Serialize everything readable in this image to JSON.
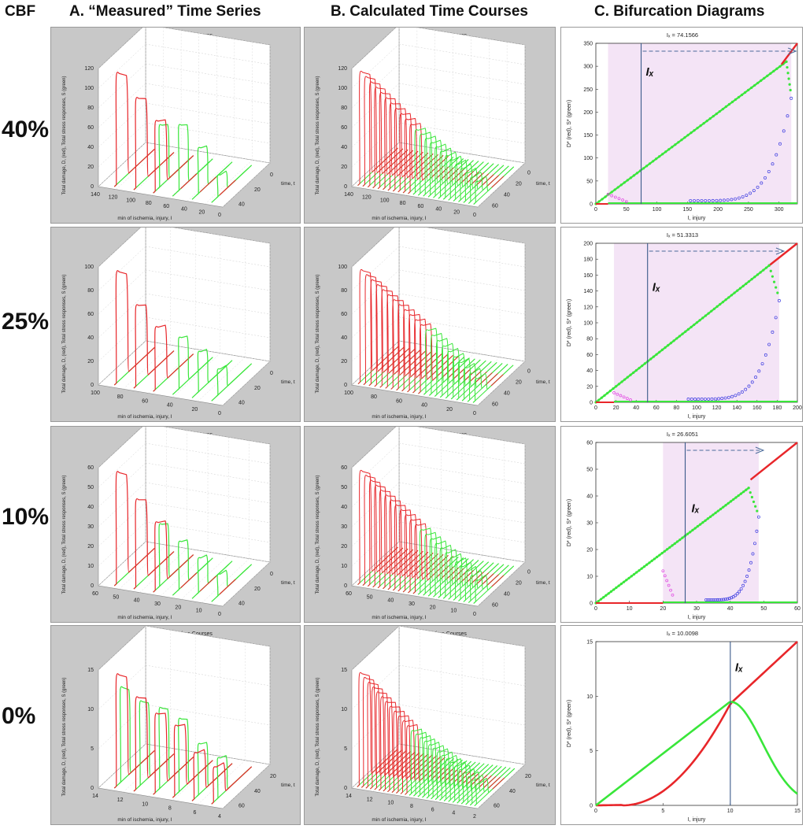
{
  "headers": {
    "cbf": "CBF",
    "col_a": "A. “Measured” Time Series",
    "col_b": "B. Calculated Time Courses",
    "col_c": "C. Bifurcation Diagrams"
  },
  "rows": [
    {
      "cbf": "40%"
    },
    {
      "cbf": "25%"
    },
    {
      "cbf": "10%"
    },
    {
      "cbf": "0%"
    }
  ],
  "colors": {
    "damage": "#e8262a",
    "stress": "#39e63a",
    "unstable": "#3a3ae0",
    "magenta": "#e040e0",
    "shade": "#f4e4f6",
    "panel_bg": "#c9c9c9",
    "arrow": "#4a6a9a"
  },
  "chart_data": [
    {
      "type": "line",
      "panel": "A-40",
      "title": "Absolute Value Time Courses",
      "zlabel": "Total damage, D, (red), Total stress responses, S (green)",
      "xlabel": "min of ischemia, injury, I",
      "ylabel": "time, t",
      "z_ticks": [
        "0",
        "20",
        "40",
        "60",
        "80",
        "100",
        "120"
      ],
      "x_ticks": [
        "140",
        "120",
        "100",
        "80",
        "60",
        "40",
        "20",
        "0"
      ],
      "y_ticks": [
        "0",
        "20",
        "40"
      ],
      "peaks_red": [
        1.0,
        0.8,
        0.62,
        0.0,
        0.0,
        0.0
      ],
      "peaks_green": [
        0.0,
        0.0,
        0.55,
        0.58,
        0.4,
        0.18
      ]
    },
    {
      "type": "line",
      "panel": "B-40",
      "title": "Absolute Value Time Courses",
      "zlabel": "Total damage, D, (red), Total stress responses, S (green)",
      "xlabel": "min of ischemia, injury, I",
      "ylabel": "time, t",
      "z_ticks": [
        "0",
        "20",
        "40",
        "60",
        "80",
        "100",
        "120"
      ],
      "x_ticks": [
        "140",
        "120",
        "100",
        "80",
        "60",
        "40",
        "20",
        "0"
      ],
      "y_ticks": [
        "0",
        "20",
        "40",
        "60"
      ],
      "n_red": 11,
      "n_green": 13
    },
    {
      "type": "scatter",
      "panel": "C-40",
      "title": "Iₓ = 74.1566",
      "ix_label": "Iₓ",
      "xlabel": "I, injury",
      "ylabel": "D* (red), S* (green)",
      "xlim": [
        0,
        330
      ],
      "ylim": [
        0,
        350
      ],
      "x_ticks": [
        0,
        50,
        100,
        150,
        200,
        250,
        300
      ],
      "y_ticks": [
        0,
        50,
        100,
        150,
        200,
        250,
        300,
        350
      ],
      "ix": 74.1566,
      "shade": [
        20,
        320
      ]
    },
    {
      "type": "line",
      "panel": "A-25",
      "title": "Absolute Value Time Courses",
      "zlabel": "Total damage, D, (red), Total stress responses, S (green)",
      "xlabel": "min of ischemia, injury, I",
      "ylabel": "time, t",
      "z_ticks": [
        "0",
        "20",
        "40",
        "60",
        "80",
        "100"
      ],
      "x_ticks": [
        "100",
        "80",
        "60",
        "40",
        "20",
        "0"
      ],
      "y_ticks": [
        "0",
        "20",
        "40"
      ],
      "peaks_red": [
        1.0,
        0.72,
        0.55,
        0.0,
        0.0,
        0.0
      ],
      "peaks_green": [
        0.0,
        0.0,
        0.0,
        0.45,
        0.35,
        0.22
      ]
    },
    {
      "type": "line",
      "panel": "B-25",
      "title": "Absolute Value Time Courses",
      "zlabel": "Total damage, D, (red), Total stress responses, S (green)",
      "xlabel": "min of ischemia, injury, I",
      "ylabel": "time, t",
      "z_ticks": [
        "0",
        "20",
        "40",
        "60",
        "80",
        "100"
      ],
      "x_ticks": [
        "100",
        "80",
        "60",
        "40",
        "20",
        "0"
      ],
      "y_ticks": [
        "0",
        "20",
        "40",
        "60"
      ],
      "n_red": 12,
      "n_green": 10
    },
    {
      "type": "scatter",
      "panel": "C-25",
      "title": "Iₓ = 51.3313",
      "ix_label": "Iₓ",
      "xlabel": "I, injury",
      "ylabel": "D* (red), S* (green)",
      "xlim": [
        0,
        200
      ],
      "ylim": [
        0,
        200
      ],
      "x_ticks": [
        0,
        20,
        40,
        60,
        80,
        100,
        120,
        140,
        160,
        180,
        200
      ],
      "y_ticks": [
        0,
        20,
        40,
        60,
        80,
        100,
        120,
        140,
        160,
        180,
        200
      ],
      "ix": 51.3313,
      "shade": [
        18,
        182
      ]
    },
    {
      "type": "line",
      "panel": "A-10",
      "title": "Absolute Value Time Courses",
      "zlabel": "Total damage, D, (red), Total stress responses, S (green)",
      "xlabel": "min of ischemia, injury, I",
      "ylabel": "time, t",
      "z_ticks": [
        "0",
        "10",
        "20",
        "30",
        "40",
        "50",
        "60"
      ],
      "x_ticks": [
        "60",
        "50",
        "40",
        "30",
        "20",
        "10",
        "0"
      ],
      "y_ticks": [
        "0",
        "20",
        "40"
      ],
      "peaks_red": [
        1.0,
        0.78,
        0.6,
        0.0,
        0.0,
        0.0
      ],
      "peaks_green": [
        0.0,
        0.0,
        0.55,
        0.42,
        0.3,
        0.18
      ]
    },
    {
      "type": "line",
      "panel": "B-10",
      "title": "Absolute Value Time Courses",
      "zlabel": "Total damage, D, (red), Total stress responses, S (green)",
      "xlabel": "min of ischemia, injury, I",
      "ylabel": "time, t",
      "z_ticks": [
        "0",
        "10",
        "20",
        "30",
        "40",
        "50",
        "60"
      ],
      "x_ticks": [
        "60",
        "50",
        "40",
        "30",
        "20",
        "10",
        "0"
      ],
      "y_ticks": [
        "0",
        "20",
        "40",
        "60"
      ],
      "n_red": 12,
      "n_green": 12
    },
    {
      "type": "scatter",
      "panel": "C-10",
      "title": "Iₓ = 26.6051",
      "ix_label": "Iₓ",
      "xlabel": "I, injury",
      "ylabel": "D* (red), S* (green)",
      "xlim": [
        0,
        60
      ],
      "ylim": [
        0,
        60
      ],
      "x_ticks": [
        0,
        10,
        20,
        30,
        40,
        50,
        60
      ],
      "y_ticks": [
        0,
        10,
        20,
        30,
        40,
        50,
        60
      ],
      "ix": 26.6051,
      "shade": [
        20,
        48.5
      ]
    },
    {
      "type": "line",
      "panel": "A-0",
      "title": "Absolute Value Time Courses",
      "zlabel": "Total damage, D, (red), Total stress responses, S (green)",
      "xlabel": "min of ischemia, injury, I",
      "ylabel": "time, t",
      "z_ticks": [
        "0",
        "5",
        "10",
        "15"
      ],
      "x_ticks": [
        "14",
        "12",
        "10",
        "8",
        "6",
        "4"
      ],
      "y_ticks": [
        "20",
        "40",
        "60"
      ],
      "peaks_red": [
        1.0,
        0.82,
        0.7,
        0.62,
        0.4,
        0.3
      ],
      "peaks_green": [
        0.85,
        0.75,
        0.72,
        0.65,
        0.45,
        0.35
      ]
    },
    {
      "type": "line",
      "panel": "B-0",
      "title": "Absolute Value Time Courses",
      "zlabel": "Total damage, D, (red), Total stress responses, S (green)",
      "xlabel": "min of ischemia, injury, I",
      "ylabel": "time, t",
      "z_ticks": [
        "0",
        "5",
        "10",
        "15"
      ],
      "x_ticks": [
        "14",
        "12",
        "10",
        "8",
        "6",
        "4",
        "2"
      ],
      "y_ticks": [
        "20",
        "40",
        "60"
      ],
      "n_red": 12,
      "n_green": 16
    },
    {
      "type": "line",
      "panel": "C-0",
      "title": "Iₓ = 10.0098",
      "ix_label": "Iₓ",
      "xlabel": "I, injury",
      "ylabel": "D* (red), S* (green)",
      "xlim": [
        0,
        15
      ],
      "ylim": [
        0,
        15
      ],
      "x_ticks": [
        0,
        5,
        10,
        15
      ],
      "y_ticks": [
        0,
        5,
        10,
        15
      ],
      "ix": 10.0098,
      "shade": null
    }
  ]
}
